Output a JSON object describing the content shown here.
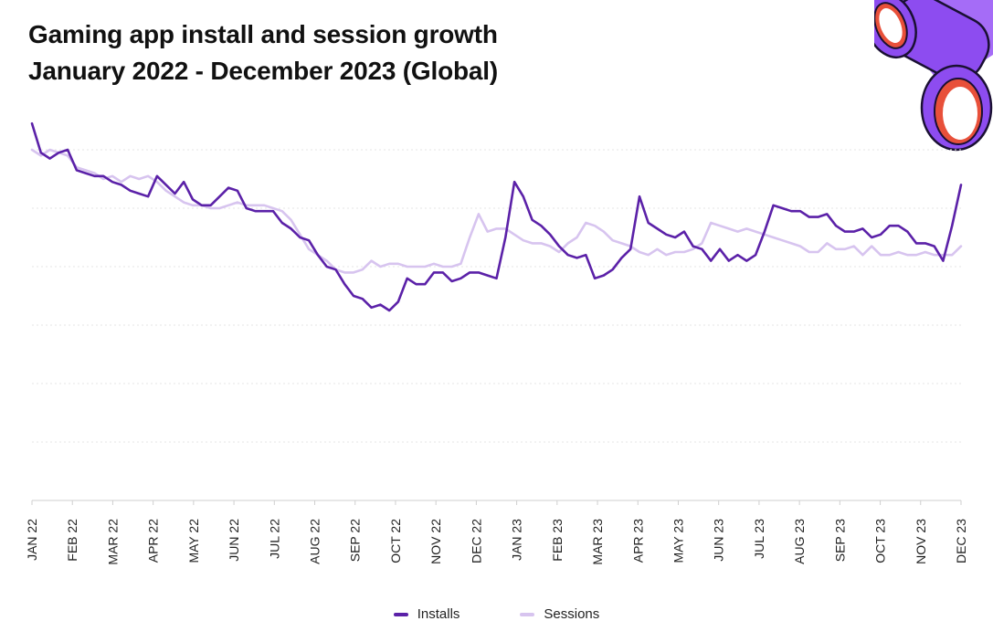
{
  "title_line1": "Gaming app install and session growth",
  "title_line2": "January 2022 - December 2023 (Global)",
  "colors": {
    "installs": "#5b21a8",
    "sessions": "#d7c4ef",
    "grid": "#e4e4e4",
    "axis": "#cfcfcf",
    "decoration": "#9b5cf6",
    "decoration_ring": "#e8503a"
  },
  "chart_data": {
    "type": "line",
    "title": "Gaming app install and session growth",
    "subtitle": "January 2022 - December 2023 (Global)",
    "xlabel": "",
    "ylabel": "",
    "y_tick_labels_shown": false,
    "grid": true,
    "legend_position": "bottom-center",
    "x_tick_labels": [
      "JAN 22",
      "FEB 22",
      "MAR 22",
      "APR 22",
      "MAY 22",
      "JUN 22",
      "JUL 22",
      "AUG 22",
      "SEP 22",
      "OCT 22",
      "NOV 22",
      "DEC 22",
      "JAN 23",
      "FEB 23",
      "MAR 23",
      "APR 23",
      "MAY 23",
      "JUN 23",
      "JUL 23",
      "AUG 23",
      "SEP 23",
      "OCT 23",
      "NOV 23",
      "DEC 23"
    ],
    "ylim": [
      0,
      140
    ],
    "x_index_range": [
      0,
      104
    ],
    "series": [
      {
        "name": "Installs",
        "values": [
          129,
          119,
          117,
          119,
          120,
          113,
          112,
          111,
          111,
          109,
          108,
          106,
          105,
          104,
          111,
          108,
          105,
          109,
          103,
          101,
          101,
          104,
          107,
          106,
          100,
          99,
          99,
          99,
          95,
          93,
          90,
          89,
          84,
          80,
          79,
          74,
          70,
          69,
          66,
          67,
          65,
          68,
          76,
          74,
          74,
          78,
          78,
          75,
          76,
          78,
          78,
          77,
          76,
          90,
          109,
          104,
          96,
          94,
          91,
          87,
          84,
          83,
          84,
          76,
          77,
          79,
          83,
          86,
          104,
          95,
          93,
          91,
          90,
          92,
          87,
          86,
          82,
          86,
          82,
          84,
          82,
          84,
          92,
          101,
          100,
          99,
          99,
          97,
          97,
          98,
          94,
          92,
          92,
          93,
          90,
          91,
          94,
          94,
          92,
          88,
          88,
          87,
          82,
          94,
          108
        ]
      },
      {
        "name": "Sessions",
        "values": [
          120,
          118,
          120,
          119,
          118,
          114,
          113,
          112,
          110,
          111,
          109,
          111,
          110,
          111,
          109,
          106,
          104,
          102,
          101,
          101,
          100,
          100,
          101,
          102,
          101,
          101,
          101,
          100,
          99,
          96,
          91,
          86,
          84,
          82,
          79,
          78,
          78,
          79,
          82,
          80,
          81,
          81,
          80,
          80,
          80,
          81,
          80,
          80,
          81,
          90,
          98,
          92,
          93,
          93,
          91,
          89,
          88,
          88,
          87,
          85,
          88,
          90,
          95,
          94,
          92,
          89,
          88,
          87,
          85,
          84,
          86,
          84,
          85,
          85,
          86,
          88,
          95,
          94,
          93,
          92,
          93,
          92,
          91,
          90,
          89,
          88,
          87,
          85,
          85,
          88,
          86,
          86,
          87,
          84,
          87,
          84,
          84,
          85,
          84,
          84,
          85,
          84,
          84,
          84,
          87
        ]
      }
    ]
  },
  "legend": [
    {
      "label": "Installs",
      "color": "#5b21a8"
    },
    {
      "label": "Sessions",
      "color": "#d7c4ef"
    }
  ],
  "decoration_icon": "purple-pipe-illustration"
}
